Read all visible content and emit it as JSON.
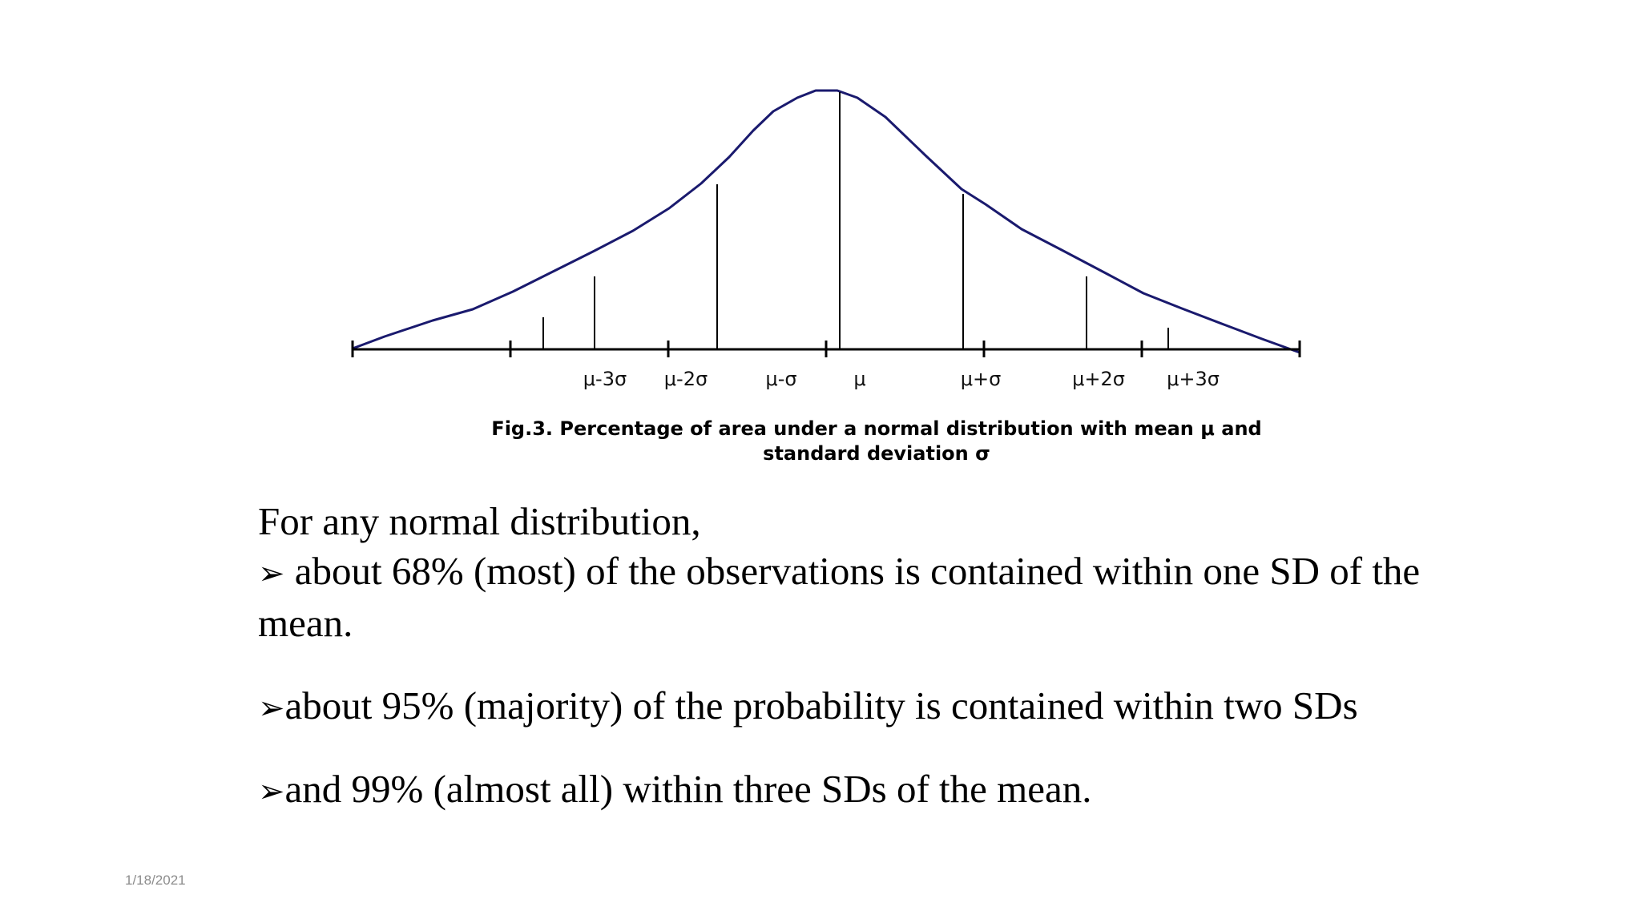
{
  "slide": {
    "date": "1/18/2021",
    "caption_line1": "Fig.3. Percentage of area under a normal distribution with mean μ and",
    "caption_line2": "standard deviation σ",
    "intro": "For any normal distribution,",
    "bullet_symbol": "➢",
    "bullets": [
      "about 68% (most) of the observations is contained within one SD of the mean.",
      "about 95% (majority) of the probability is contained within two SDs",
      "and 99% (almost all) within three SDs of the mean."
    ]
  },
  "diagram": {
    "curve_color": "#1a1a6e",
    "line_color": "#000000",
    "tick_labels": [
      "μ-3σ",
      "μ-2σ",
      "μ-σ",
      "μ",
      "μ+σ",
      "μ+2σ",
      "μ+3σ"
    ]
  }
}
